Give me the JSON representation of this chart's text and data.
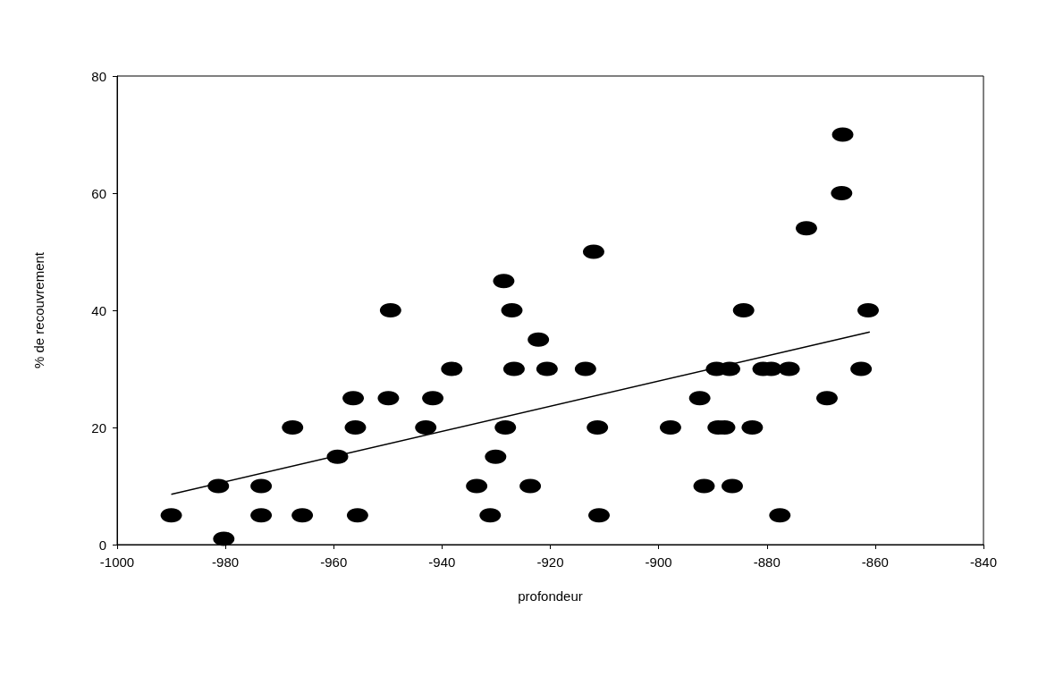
{
  "chart_data": {
    "type": "scatter",
    "xlabel": "profondeur",
    "ylabel": "% de recouvrement",
    "xlim": [
      -1000,
      -840
    ],
    "xticks": [
      -1000,
      -980,
      -960,
      -940,
      -920,
      -900,
      -880,
      -860,
      -840
    ],
    "ylim": [
      0,
      80
    ],
    "yticks": [
      0,
      20,
      40,
      60,
      80
    ],
    "grid": false,
    "series": [
      {
        "marker": "circle",
        "color": "#000000",
        "x": [
          -990,
          -981.3,
          -980.3,
          -973.4,
          -973.4,
          -967.6,
          -965.8,
          -959.3,
          -956.4,
          -956,
          -955.6,
          -949.5,
          -949.9,
          -943,
          -941.7,
          -938.2,
          -933.6,
          -931.1,
          -930.1,
          -928.6,
          -928.3,
          -927.1,
          -926.7,
          -923.7,
          -922.2,
          -920.6,
          -913.5,
          -912,
          -911.3,
          -911,
          -897.8,
          -892.4,
          -891.6,
          -889.3,
          -886.9,
          -889,
          -887.8,
          -886.4,
          -884.3,
          -882.7,
          -880.7,
          -879.2,
          -877.6,
          -875.9,
          -872.7,
          -868.9,
          -866.2,
          -866,
          -862.6,
          -861.3
        ],
        "values": [
          5,
          10,
          1,
          10,
          5,
          20,
          5,
          15,
          25,
          20,
          5,
          40,
          25,
          20,
          25,
          30,
          10,
          5,
          15,
          45,
          20,
          40,
          30,
          10,
          35,
          30,
          30,
          50,
          20,
          5,
          20,
          25,
          10,
          30,
          30,
          20,
          20,
          10,
          40,
          20,
          30,
          30,
          5,
          30,
          54,
          25,
          60,
          70,
          30,
          40
        ]
      },
      {
        "type": "line",
        "marker": "none",
        "line_style": "solid",
        "color": "#000000",
        "x": [
          -990,
          -861
        ],
        "values": [
          8.6,
          36.3
        ]
      }
    ]
  }
}
